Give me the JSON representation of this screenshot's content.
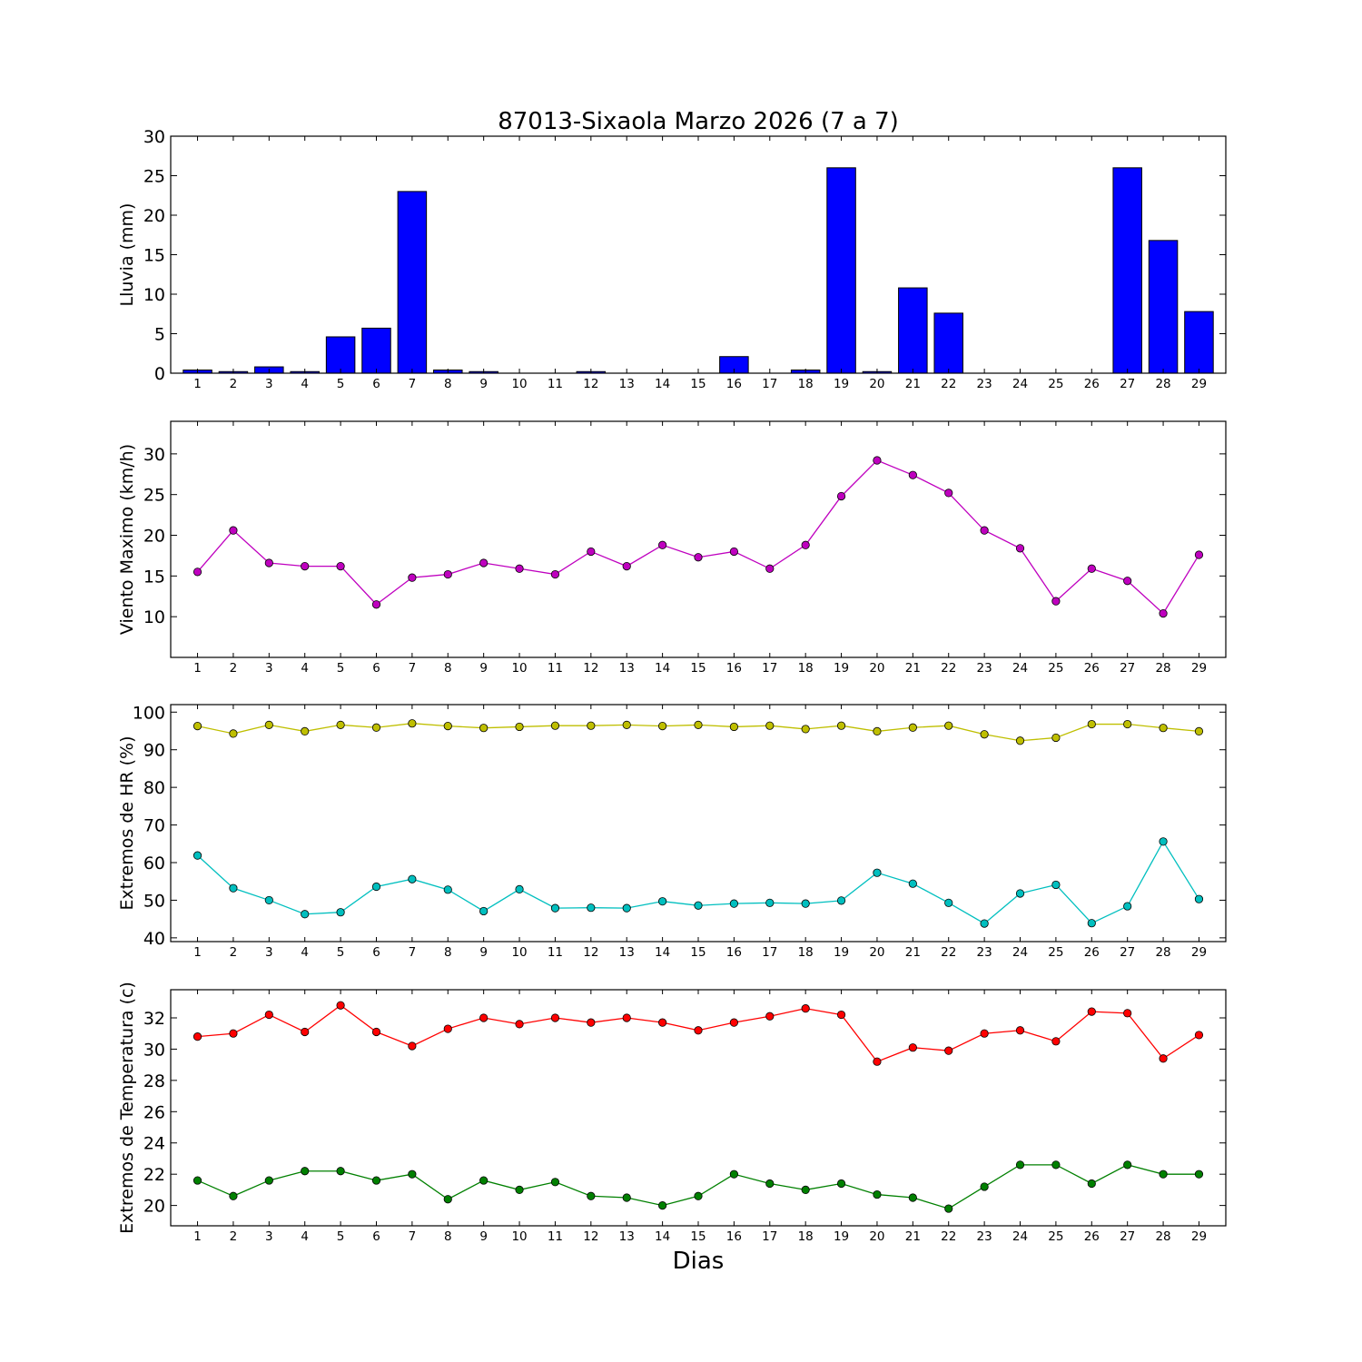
{
  "chart_data": [
    {
      "type": "bar",
      "title": "87013-Sixaola Marzo 2026  (7 a 7)",
      "ylabel": "Lluvia (mm)",
      "ylim": [
        0,
        30
      ],
      "yticks": [
        0,
        5,
        10,
        15,
        20,
        25,
        30
      ],
      "categories": [
        1,
        2,
        3,
        4,
        5,
        6,
        7,
        8,
        9,
        10,
        11,
        12,
        13,
        14,
        15,
        16,
        17,
        18,
        19,
        20,
        21,
        22,
        23,
        24,
        25,
        26,
        27,
        28,
        29
      ],
      "series": [
        {
          "values": [
            0.4,
            0.2,
            0.8,
            0.2,
            4.6,
            5.7,
            23.0,
            0.4,
            0.2,
            0,
            0,
            0.2,
            0,
            0,
            0,
            2.1,
            0,
            0.4,
            26.0,
            0.2,
            10.8,
            7.6,
            0,
            0,
            0,
            0,
            26.0,
            16.8,
            7.8
          ],
          "color": "#0000ff"
        }
      ]
    },
    {
      "type": "line",
      "ylabel": "Viento Maximo (km/h)",
      "ylim": [
        5,
        34
      ],
      "yticks": [
        10,
        15,
        20,
        25,
        30
      ],
      "categories": [
        1,
        2,
        3,
        4,
        5,
        6,
        7,
        8,
        9,
        10,
        11,
        12,
        13,
        14,
        15,
        16,
        17,
        18,
        19,
        20,
        21,
        22,
        23,
        24,
        25,
        26,
        27,
        28,
        29
      ],
      "series": [
        {
          "values": [
            15.5,
            20.6,
            16.6,
            16.2,
            16.2,
            11.5,
            14.8,
            15.2,
            16.6,
            15.9,
            15.2,
            18.0,
            16.2,
            18.8,
            17.3,
            18.0,
            15.9,
            18.8,
            24.8,
            29.2,
            27.4,
            25.2,
            20.6,
            18.4,
            11.9,
            15.9,
            14.4,
            10.4,
            17.6
          ],
          "color": "#bf00bf"
        }
      ]
    },
    {
      "type": "line",
      "ylabel": "Extremos de HR (%)",
      "ylim": [
        39,
        102
      ],
      "yticks": [
        40,
        50,
        60,
        70,
        80,
        90,
        100
      ],
      "categories": [
        1,
        2,
        3,
        4,
        5,
        6,
        7,
        8,
        9,
        10,
        11,
        12,
        13,
        14,
        15,
        16,
        17,
        18,
        19,
        20,
        21,
        22,
        23,
        24,
        25,
        26,
        27,
        28,
        29
      ],
      "series": [
        {
          "values": [
            96.3,
            94.3,
            96.6,
            94.9,
            96.6,
            95.9,
            97.0,
            96.3,
            95.8,
            96.1,
            96.4,
            96.4,
            96.6,
            96.3,
            96.6,
            96.1,
            96.4,
            95.5,
            96.4,
            94.9,
            95.9,
            96.4,
            94.1,
            92.4,
            93.2,
            96.8,
            96.8,
            95.8,
            94.9
          ],
          "color": "#bfbf00"
        },
        {
          "values": [
            61.9,
            53.2,
            50.0,
            46.3,
            46.8,
            53.6,
            55.6,
            52.8,
            47.1,
            52.9,
            47.9,
            48.0,
            47.9,
            49.7,
            48.6,
            49.1,
            49.3,
            49.1,
            49.9,
            57.3,
            54.4,
            49.3,
            43.8,
            51.8,
            54.1,
            43.9,
            48.4,
            65.6,
            50.3
          ],
          "color": "#00bfbf"
        }
      ]
    },
    {
      "type": "line",
      "ylabel": "Extremos de Temperatura (c)",
      "xlabel": "Dias",
      "ylim": [
        18.7,
        33.8
      ],
      "yticks": [
        20,
        22,
        24,
        26,
        28,
        30,
        32
      ],
      "categories": [
        1,
        2,
        3,
        4,
        5,
        6,
        7,
        8,
        9,
        10,
        11,
        12,
        13,
        14,
        15,
        16,
        17,
        18,
        19,
        20,
        21,
        22,
        23,
        24,
        25,
        26,
        27,
        28,
        29
      ],
      "series": [
        {
          "values": [
            30.8,
            31.0,
            32.2,
            31.1,
            32.8,
            31.1,
            30.2,
            31.3,
            32.0,
            31.6,
            32.0,
            31.7,
            32.0,
            31.7,
            31.2,
            31.7,
            32.1,
            32.6,
            32.2,
            29.2,
            30.1,
            29.9,
            31.0,
            31.2,
            30.5,
            32.4,
            32.3,
            29.4,
            30.9
          ],
          "color": "#ff0000"
        },
        {
          "values": [
            21.6,
            20.6,
            21.6,
            22.2,
            22.2,
            21.6,
            22.0,
            20.4,
            21.6,
            21.0,
            21.5,
            20.6,
            20.5,
            20.0,
            20.6,
            22.0,
            21.4,
            21.0,
            21.4,
            20.7,
            20.5,
            19.8,
            21.2,
            22.6,
            22.6,
            21.4,
            22.6,
            22.0,
            22.0
          ],
          "color": "#008000"
        }
      ]
    }
  ]
}
